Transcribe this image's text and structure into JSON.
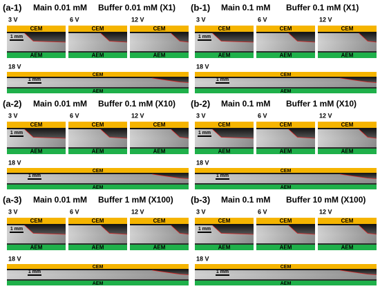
{
  "common": {
    "cem": "CEM",
    "aem": "AEM",
    "scale": "1 mm",
    "voltages": [
      "3 V",
      "6 V",
      "12 V"
    ],
    "long_voltage": "18 V"
  },
  "panels": [
    {
      "id": "(a-1)",
      "main": "Main 0.01 mM",
      "buffer": "Buffer 0.01 mM (X1)"
    },
    {
      "id": "(b-1)",
      "main": "Main 0.1 mM",
      "buffer": "Buffer 0.1 mM (X1)"
    },
    {
      "id": "(a-2)",
      "main": "Main 0.01 mM",
      "buffer": "Buffer 0.1 mM (X10)"
    },
    {
      "id": "(b-2)",
      "main": "Main 0.1 mM",
      "buffer": "Buffer 1 mM (X10)"
    },
    {
      "id": "(a-3)",
      "main": "Main 0.01 mM",
      "buffer": "Buffer 1 mM (X100)"
    },
    {
      "id": "(b-3)",
      "main": "Main 0.1 mM",
      "buffer": "Buffer 10 mM (X100)"
    }
  ]
}
